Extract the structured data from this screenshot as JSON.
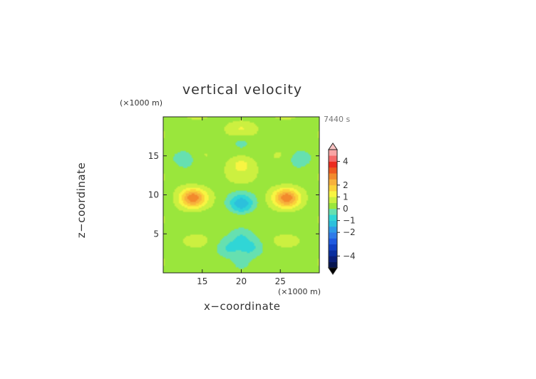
{
  "chart_data": {
    "type": "heatmap",
    "title": "vertical velocity",
    "xlabel": "x−coordinate",
    "ylabel": "z−coordinate",
    "x_unit": "(×1000 m)",
    "z_unit": "(×1000 m)",
    "time_label": "7440 s",
    "xlim": [
      10,
      30
    ],
    "ylim": [
      0,
      20
    ],
    "x_ticks": [
      15,
      20,
      25
    ],
    "y_ticks": [
      5,
      10,
      15
    ],
    "colorbar": {
      "levels": [
        -5,
        -4.5,
        -4,
        -3.5,
        -3,
        -2.5,
        -2,
        -1.5,
        -1,
        -0.5,
        0,
        0.5,
        1,
        1.5,
        2,
        2.5,
        3,
        3.5,
        4,
        4.5,
        5
      ],
      "tick_labels": [
        "4",
        "2",
        "1",
        "0",
        "−1",
        "−2",
        "−4"
      ],
      "tick_values": [
        4,
        2,
        1,
        0,
        -1,
        -2,
        -4
      ]
    },
    "features": [
      {
        "x": 13.8,
        "z": 9.6,
        "w": 2.3
      },
      {
        "x": 25.8,
        "z": 9.6,
        "w": 2.3
      },
      {
        "x": 20.0,
        "z": 8.8,
        "w": -1.6
      },
      {
        "x": 20.0,
        "z": 18.3,
        "w": 0.8
      },
      {
        "x": 20.0,
        "z": 17.2,
        "w": -0.8
      },
      {
        "x": 20.0,
        "z": 14.0,
        "w": 0.9
      },
      {
        "x": 12.8,
        "z": 14.7,
        "w": -0.8
      },
      {
        "x": 27.4,
        "z": 14.7,
        "w": -0.8
      },
      {
        "x": 18.3,
        "z": 3.1,
        "w": -0.8
      },
      {
        "x": 21.3,
        "z": 3.1,
        "w": -0.8
      },
      {
        "x": 20.0,
        "z": 1.3,
        "w": -0.7
      },
      {
        "x": 20.0,
        "z": 5.0,
        "w": -0.6
      }
    ]
  }
}
